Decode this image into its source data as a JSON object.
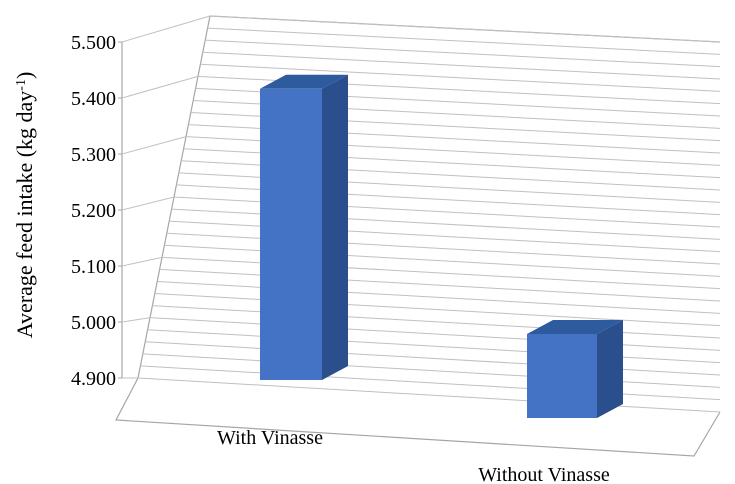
{
  "chart_data": {
    "type": "bar",
    "categories": [
      "With Vinasse",
      "Without Vinasse"
    ],
    "values": [
      5.42,
      5.05
    ],
    "ylabel": "Average feed intake (kg day",
    "ylabel_superscript": "-1",
    "ylabel_suffix": ")",
    "ylim": [
      4.9,
      5.5
    ],
    "yticks": [
      "4.900",
      "5.000",
      "5.100",
      "5.200",
      "5.300",
      "5.400",
      "5.500"
    ],
    "grid": true,
    "style": "3d-column",
    "colors": {
      "bar_front": "#4472C4",
      "bar_top": "#2E5A9E",
      "bar_side": "#2B4E8C",
      "grid": "#C0C0C0",
      "wall": "#A6A6A6"
    }
  }
}
